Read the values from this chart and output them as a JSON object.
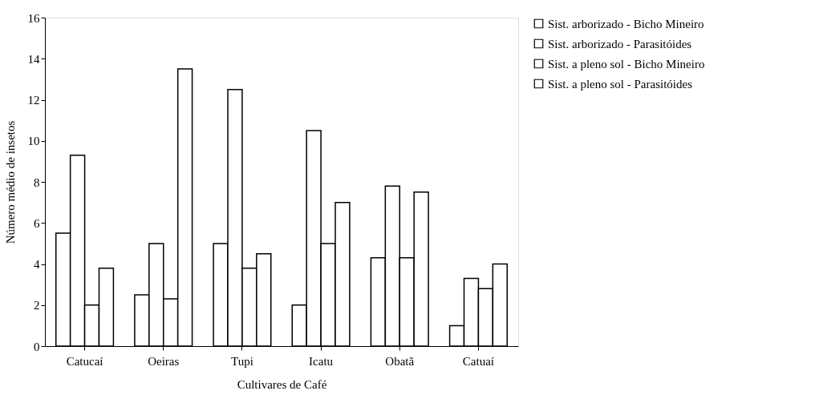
{
  "chart_data": {
    "type": "bar",
    "xlabel": "Cultivares de Café",
    "ylabel": "Número médio de insetos",
    "categories": [
      "Catucaí",
      "Oeiras",
      "Tupi",
      "Icatu",
      "Obatã",
      "Catuaí"
    ],
    "series": [
      {
        "name": "Sist. arborizado - Bicho Mineiro",
        "color": "#ffffff",
        "values": [
          5.5,
          2.5,
          5,
          2,
          4.3,
          1
        ]
      },
      {
        "name": "Sist. arborizado - Parasitóides",
        "color": "#ffffff",
        "values": [
          9.3,
          5,
          12.5,
          10.5,
          7.8,
          3.3
        ]
      },
      {
        "name": "Sist. a pleno sol - Bicho Mineiro",
        "color": "#ffffff",
        "values": [
          2,
          2.3,
          3.8,
          5,
          4.3,
          2.8
        ]
      },
      {
        "name": "Sist. a pleno sol - Parasitóides",
        "color": "#ffffff",
        "values": [
          3.8,
          13.5,
          4.5,
          7,
          7.5,
          4
        ]
      }
    ],
    "ylim": [
      0,
      16
    ],
    "yticks": [
      0,
      2,
      4,
      6,
      8,
      10,
      12,
      14,
      16
    ],
    "grid": false,
    "legend": "right"
  }
}
